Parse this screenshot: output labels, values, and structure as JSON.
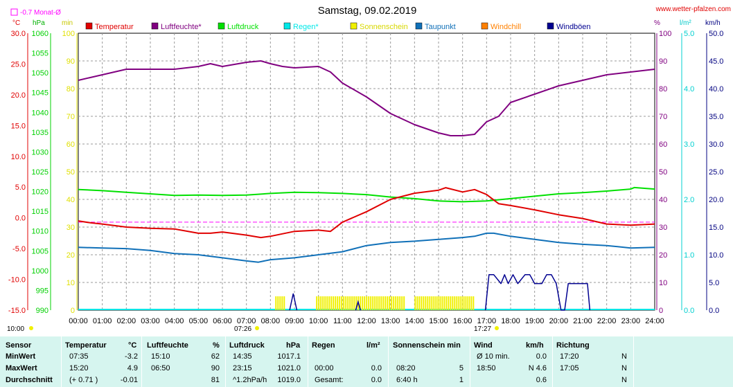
{
  "header": {
    "title": "Samstag, 09.02.2019",
    "site": "www.wetter-pfalzen.com",
    "month_avg": "-0.7 Monat-Ø"
  },
  "units": {
    "celsius": "°C",
    "hpa": "hPa",
    "min": "min",
    "percent": "%",
    "rain": "l/m²",
    "wind": "km/h"
  },
  "legend": [
    {
      "label": "Temperatur",
      "color": "#e00000"
    },
    {
      "label": "Luftfeuchte*",
      "color": "#800080"
    },
    {
      "label": "Luftdruck",
      "color": "#00e000"
    },
    {
      "label": "Regen*",
      "color": "#00e8e8"
    },
    {
      "label": "Sonnenschein",
      "color": "#f0f000"
    },
    {
      "label": "Taupunkt",
      "color": "#1070b8"
    },
    {
      "label": "Windchill",
      "color": "#ff8000"
    },
    {
      "label": "Windböen",
      "color": "#000090"
    }
  ],
  "axes": {
    "temp_ticks": [
      "30.0",
      "25.0",
      "20.0",
      "15.0",
      "10.0",
      "5.0",
      "0.0",
      "-5.0",
      "-10.0",
      "-15.0"
    ],
    "hpa_ticks": [
      "1060",
      "1055",
      "1050",
      "1045",
      "1040",
      "1035",
      "1030",
      "1025",
      "1020",
      "1015",
      "1010",
      "1005",
      "1000",
      "995",
      "990"
    ],
    "min_ticks": [
      "100",
      "90",
      "80",
      "70",
      "60",
      "50",
      "40",
      "30",
      "20",
      "10",
      "0"
    ],
    "pct_ticks": [
      "100",
      "90",
      "80",
      "70",
      "60",
      "50",
      "40",
      "30",
      "20",
      "10",
      "0"
    ],
    "rain_ticks": [
      "5.0",
      "4.0",
      "3.0",
      "2.0",
      "1.0",
      "0.0"
    ],
    "wind_ticks": [
      "50.0",
      "45.0",
      "40.0",
      "35.0",
      "30.0",
      "25.0",
      "20.0",
      "15.0",
      "10.0",
      "5.0",
      "0.0"
    ],
    "x_ticks": [
      "00:00",
      "01:00",
      "02:00",
      "03:00",
      "04:00",
      "05:00",
      "06:00",
      "07:00",
      "08:00",
      "09:00",
      "10:00",
      "11:00",
      "12:00",
      "13:00",
      "14:00",
      "15:00",
      "16:00",
      "17:00",
      "18:00",
      "19:00",
      "20:00",
      "21:00",
      "22:00",
      "23:00",
      "24:00"
    ]
  },
  "sun": {
    "sunrise": "07:26",
    "sunset": "17:27",
    "left_time": "10:00"
  },
  "chart_data": {
    "type": "line",
    "title": "Samstag, 09.02.2019",
    "x_unit": "hour",
    "temp_range_c": [
      -15,
      30
    ],
    "pressure_range_hpa": [
      990,
      1060
    ],
    "humidity_range_pct": [
      0,
      100
    ],
    "sunshine_range_min": [
      0,
      100
    ],
    "wind_range_kmh": [
      0,
      50
    ],
    "rain_range_lm2": [
      0,
      5
    ],
    "month_avg_temp_c": -0.7,
    "series": [
      {
        "name": "Temperatur",
        "unit": "°C",
        "x": [
          0,
          0.5,
          1,
          2,
          3,
          4,
          5,
          5.5,
          6,
          7,
          7.6,
          8,
          9,
          10,
          10.5,
          11,
          12,
          13,
          14,
          15,
          15.3,
          16,
          16.5,
          17,
          17.5,
          18,
          19,
          20,
          21,
          22,
          23,
          24
        ],
        "y": [
          -0.5,
          -0.8,
          -1.0,
          -1.5,
          -1.7,
          -1.8,
          -2.5,
          -2.5,
          -2.3,
          -2.8,
          -3.2,
          -3.0,
          -2.2,
          -2.0,
          -2.2,
          -0.7,
          1.0,
          3.0,
          4.0,
          4.5,
          4.9,
          4.2,
          4.6,
          3.8,
          2.3,
          2.0,
          1.3,
          0.5,
          -0.1,
          -1.0,
          -1.2,
          -1.0
        ]
      },
      {
        "name": "Luftfeuchte*",
        "unit": "%",
        "x": [
          0,
          0.5,
          1,
          2,
          3,
          4,
          5,
          5.5,
          6,
          7,
          7.6,
          8,
          8.5,
          9,
          10,
          10.5,
          11,
          12,
          13,
          14,
          15,
          15.5,
          16,
          16.5,
          17,
          17.5,
          18,
          19,
          20,
          21,
          22,
          23,
          24
        ],
        "y": [
          83,
          84,
          85,
          87,
          87,
          87,
          88,
          89,
          88,
          89.5,
          90,
          89,
          88,
          87.5,
          88,
          86,
          82,
          77,
          71,
          67,
          64,
          63,
          63,
          63.5,
          68,
          70,
          75,
          78,
          81,
          83,
          85,
          86,
          87
        ]
      },
      {
        "name": "Luftdruck",
        "unit": "hPa",
        "x": [
          0,
          1,
          2,
          3,
          4,
          5,
          6,
          7,
          8,
          9,
          10,
          11,
          12,
          13,
          14,
          15,
          16,
          17,
          18,
          19,
          20,
          21,
          22,
          23,
          23.15,
          24
        ],
        "y": [
          1020.5,
          1020.2,
          1019.8,
          1019.4,
          1019.0,
          1019.1,
          1019.0,
          1019.1,
          1019.5,
          1019.8,
          1019.7,
          1019.5,
          1019.2,
          1018.6,
          1018.2,
          1017.6,
          1017.4,
          1017.6,
          1018.2,
          1018.8,
          1019.4,
          1019.7,
          1020.1,
          1020.6,
          1021.0,
          1020.6
        ]
      },
      {
        "name": "Taupunkt",
        "unit": "°C",
        "x": [
          0,
          1,
          2,
          3,
          4,
          5,
          6,
          7,
          7.5,
          8,
          9,
          10,
          11,
          12,
          13,
          14,
          15,
          16,
          16.5,
          17,
          17.3,
          18,
          19,
          20,
          21,
          22,
          23,
          24
        ],
        "y": [
          -4.8,
          -4.9,
          -5.0,
          -5.3,
          -5.8,
          -6.0,
          -6.5,
          -7.0,
          -7.2,
          -6.8,
          -6.5,
          -6.0,
          -5.5,
          -4.5,
          -4.0,
          -3.8,
          -3.5,
          -3.2,
          -3.0,
          -2.5,
          -2.5,
          -3.0,
          -3.5,
          -4.0,
          -4.3,
          -4.5,
          -4.9,
          -4.8
        ]
      },
      {
        "name": "Windböen",
        "unit": "km/h",
        "x": [
          16.95,
          17.1,
          17.3,
          17.6,
          17.75,
          17.9,
          18.1,
          18.3,
          18.6,
          18.8,
          19.0,
          19.3,
          19.5,
          19.7,
          19.9,
          20.1,
          20.25,
          20.4,
          20.6,
          21.0,
          21.2,
          21.3
        ],
        "y": [
          0,
          6.4,
          6.4,
          4.8,
          6.4,
          4.8,
          6.4,
          4.8,
          6.4,
          6.4,
          4.8,
          4.8,
          6.4,
          6.4,
          4.8,
          0,
          0,
          4.8,
          4.8,
          4.8,
          4.8,
          0
        ]
      },
      {
        "name": "Sonnenschein",
        "unit": "min",
        "x": [
          8.2,
          8.6,
          9.9,
          13.6,
          14.0,
          16.5
        ],
        "y": [
          5,
          5,
          5,
          5,
          5,
          5
        ]
      }
    ]
  },
  "stats": {
    "headers": {
      "sensor": "Sensor",
      "temp": "Temperatur",
      "temp_unit": "°C",
      "hum": "Luftfeuchte",
      "hum_unit": "%",
      "press": "Luftdruck",
      "press_unit": "hPa",
      "rain": "Regen",
      "rain_unit": "l/m²",
      "sun": "Sonnenschein min",
      "wind": "Wind",
      "wind_unit": "km/h",
      "dir": "Richtung"
    },
    "rows": [
      {
        "label": "MinWert",
        "t_time": "07:35",
        "t_val": "-3.2",
        "h_time": "15:10",
        "h_val": "62",
        "p_time": "14:35",
        "p_val": "1017.1",
        "r_time": "",
        "r_val": "",
        "s_time": "",
        "s_val": "",
        "w_time": "Ø 10 min.",
        "w_val": "0.0",
        "d_time": "17:20",
        "d_val": "N"
      },
      {
        "label": "MaxWert",
        "t_time": "15:20",
        "t_val": "4.9",
        "h_time": "06:50",
        "h_val": "90",
        "p_time": "23:15",
        "p_val": "1021.0",
        "r_time": "00:00",
        "r_val": "0.0",
        "s_time": "08:20",
        "s_val": "5",
        "w_time": "18:50",
        "w_val": "N 4.6",
        "d_time": "17:05",
        "d_val": "N"
      },
      {
        "label": "Durchschnitt",
        "t_time": "(+ 0.71 )",
        "t_val": "-0.01",
        "h_time": "",
        "h_val": "81",
        "p_time": "^1.2hPa/h",
        "p_val": "1019.0",
        "r_time": "Gesamt:",
        "r_val": "0.0",
        "s_time": "6:40 h",
        "s_val": "1",
        "w_time": "",
        "w_val": "0.6",
        "d_time": "",
        "d_val": "N"
      }
    ]
  }
}
